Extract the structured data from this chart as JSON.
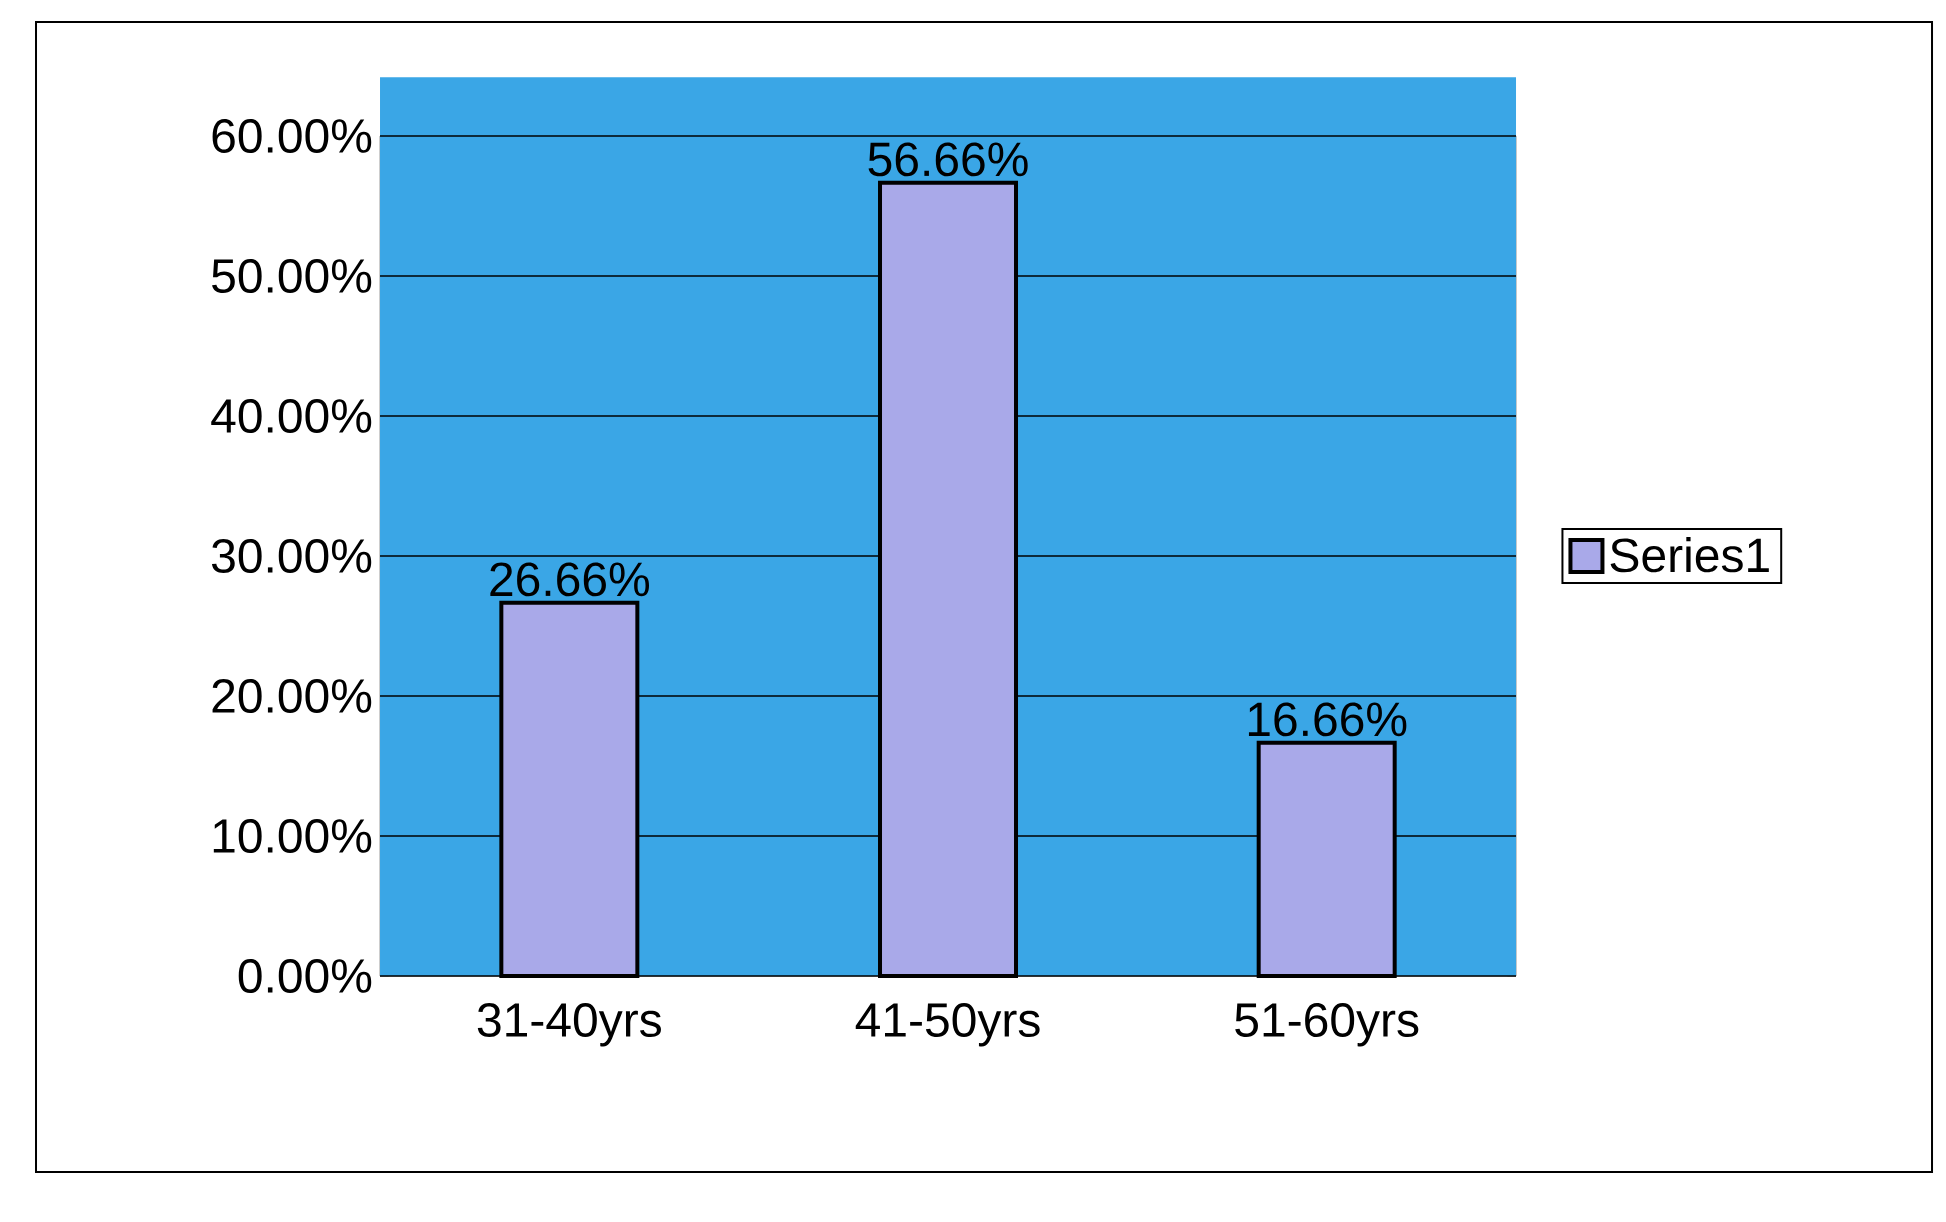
{
  "chart_data": {
    "type": "bar",
    "categories": [
      "31-40yrs",
      "41-50yrs",
      "51-60yrs"
    ],
    "series": [
      {
        "name": "Series1",
        "color": "#a9a9e9",
        "values": [
          26.66,
          56.66,
          16.66
        ],
        "value_labels": [
          "26.66%",
          "56.66%",
          "16.66%"
        ]
      }
    ],
    "ylim": [
      0,
      60
    ],
    "yticks": [
      {
        "value": 0,
        "label": "0.00%"
      },
      {
        "value": 10,
        "label": "10.00%"
      },
      {
        "value": 20,
        "label": "20.00%"
      },
      {
        "value": 30,
        "label": "30.00%"
      },
      {
        "value": 40,
        "label": "40.00%"
      },
      {
        "value": 50,
        "label": "50.00%"
      },
      {
        "value": 60,
        "label": "60.00%"
      }
    ],
    "grid": "y",
    "legend": "right"
  }
}
